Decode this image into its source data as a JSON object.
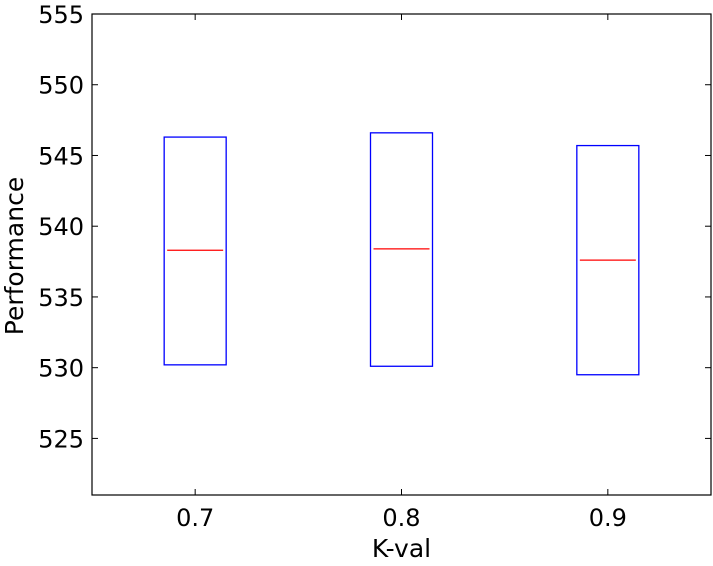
{
  "chart_data": {
    "type": "box",
    "title": "",
    "xlabel": "K-val",
    "ylabel": "Performance",
    "xlim": [
      0.65,
      0.95
    ],
    "ylim": [
      521,
      555
    ],
    "xticks": [
      "0.7",
      "0.8",
      "0.9"
    ],
    "yticks": [
      "525",
      "530",
      "535",
      "540",
      "545",
      "550",
      "555"
    ],
    "grid": false,
    "legend": "none",
    "colors": {
      "box": "#0000ff",
      "median": "#ff0000",
      "axis": "#000000"
    },
    "boxes": [
      {
        "x": 0.7,
        "q1": 530.2,
        "median": 538.3,
        "q3": 546.3
      },
      {
        "x": 0.8,
        "q1": 530.1,
        "median": 538.4,
        "q3": 546.6
      },
      {
        "x": 0.9,
        "q1": 529.5,
        "median": 537.6,
        "q3": 545.7
      }
    ]
  }
}
